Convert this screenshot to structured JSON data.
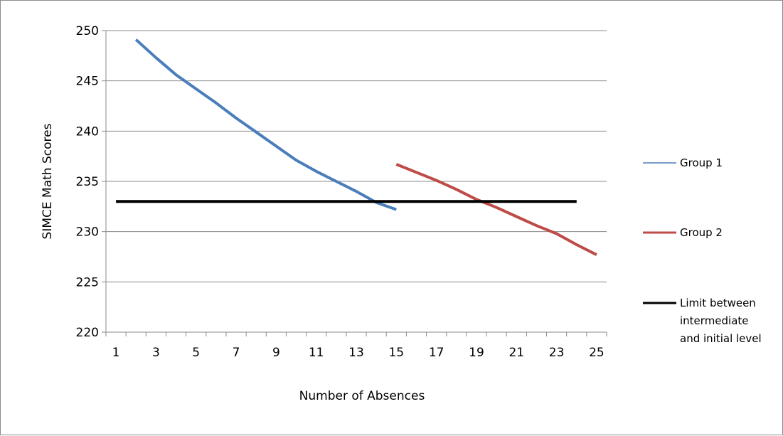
{
  "chart_data": {
    "type": "line",
    "title": "",
    "xlabel": "Number of Absences",
    "ylabel": "SIMCE Math Scores",
    "x_tick_labels": [
      "1",
      "3",
      "5",
      "7",
      "9",
      "11",
      "13",
      "15",
      "17",
      "19",
      "21",
      "23",
      "25"
    ],
    "x_categories": [
      1,
      2,
      3,
      4,
      5,
      6,
      7,
      8,
      9,
      10,
      11,
      12,
      13,
      14,
      15,
      16,
      17,
      18,
      19,
      20,
      21,
      22,
      23,
      24,
      25
    ],
    "y_ticks": [
      "220",
      "225",
      "230",
      "235",
      "240",
      "245",
      "250"
    ],
    "ylim": [
      220,
      250
    ],
    "y_step": 5,
    "grid": "horizontal",
    "legend_position": "right",
    "series": [
      {
        "name": "Group 1",
        "color": "#4a7ebb",
        "style": "line",
        "x": [
          2,
          3,
          4,
          5,
          6,
          7,
          8,
          9,
          10,
          11,
          12,
          13,
          14,
          15
        ],
        "y": [
          249.1,
          247.3,
          245.6,
          244.2,
          242.8,
          241.3,
          239.9,
          238.5,
          237.1,
          236.0,
          235.0,
          234.0,
          232.9,
          232.2
        ]
      },
      {
        "name": "Group 2",
        "color": "#be4b48",
        "style": "line",
        "x": [
          15,
          16,
          17,
          18,
          19,
          20,
          21,
          22,
          23,
          24,
          25
        ],
        "y": [
          236.7,
          235.9,
          235.1,
          234.2,
          233.2,
          232.4,
          231.5,
          230.6,
          229.8,
          228.7,
          227.7
        ]
      },
      {
        "name": "Limit between intermediate and initial level",
        "color": "#000000",
        "style": "thick-line",
        "x": [
          1,
          24
        ],
        "y": [
          233,
          233
        ]
      }
    ],
    "legend_lines": [
      [
        "Group 1"
      ],
      [
        "Group 2"
      ],
      [
        "Limit between",
        "intermediate",
        "and initial level"
      ]
    ]
  }
}
